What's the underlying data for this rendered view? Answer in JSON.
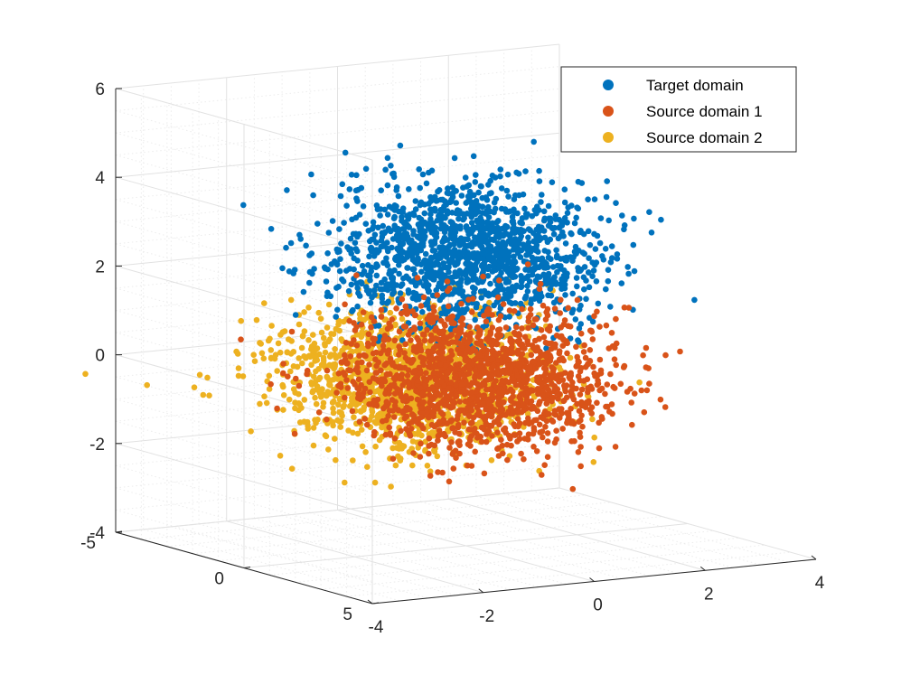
{
  "chart_data": {
    "type": "scatter",
    "projection": "3d",
    "grid": true,
    "minor_grid": true,
    "legend_position": "top-right",
    "xlim": [
      -4,
      4
    ],
    "ylim": [
      -5,
      5
    ],
    "zlim": [
      -4,
      6
    ],
    "x_ticks": [
      "-4",
      "-2",
      "0",
      "2",
      "4"
    ],
    "y_ticks": [
      "-5",
      "0",
      "5"
    ],
    "z_ticks": [
      "-4",
      "-2",
      "0",
      "2",
      "4",
      "6"
    ],
    "series": [
      {
        "name": "Target domain",
        "color": "#0072BD",
        "center": [
          0,
          0,
          2.6
        ],
        "spread": [
          1.0,
          1.5,
          0.75
        ],
        "n_points": 1500
      },
      {
        "name": "Source domain 1",
        "color": "#D95319",
        "center": [
          0.2,
          0,
          -0.3
        ],
        "spread": [
          1.0,
          1.5,
          0.75
        ],
        "n_points": 1500
      },
      {
        "name": "Source domain 2",
        "color": "#EDB120",
        "center": [
          -1.0,
          0,
          -0.1
        ],
        "spread": [
          1.0,
          1.5,
          0.75
        ],
        "n_points": 1500
      }
    ]
  }
}
